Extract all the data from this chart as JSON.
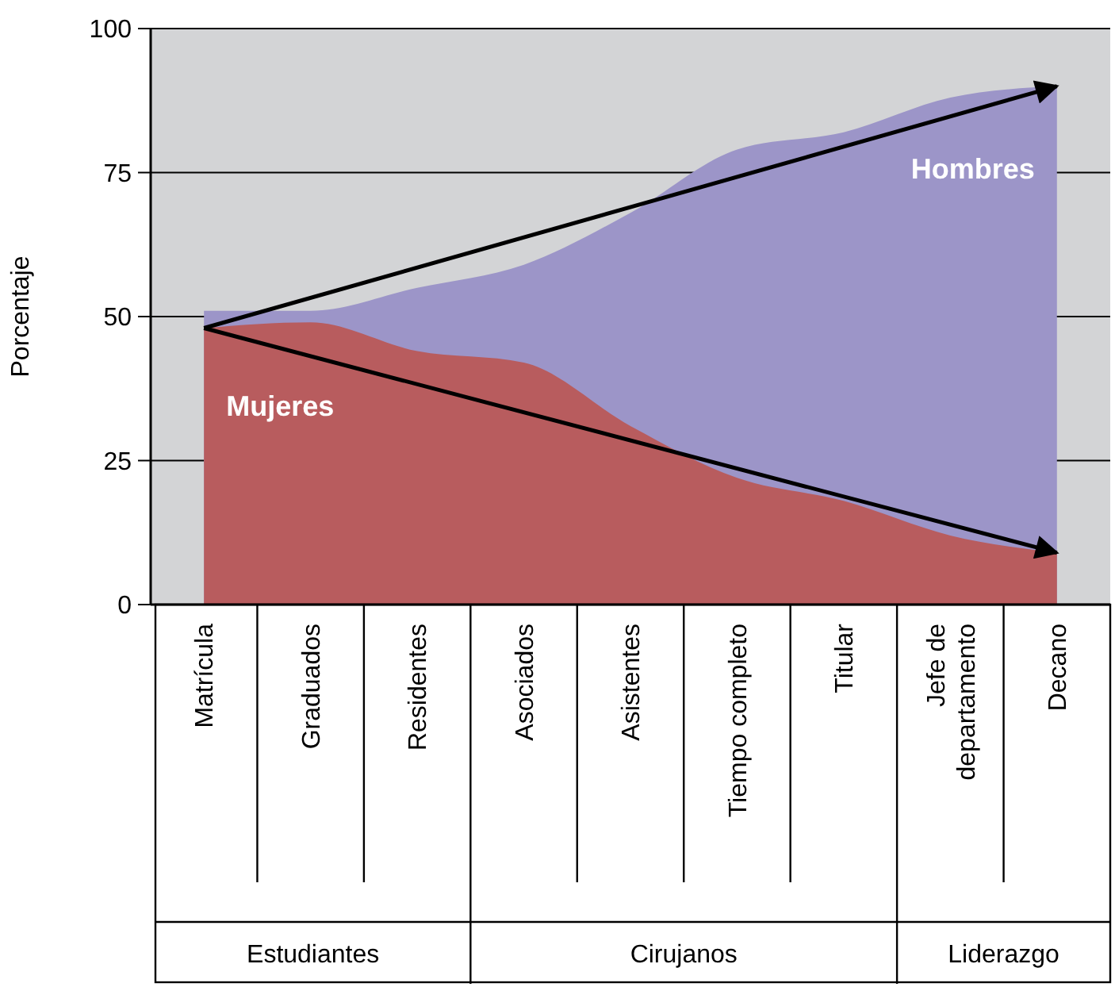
{
  "chart_data": {
    "type": "area",
    "ylabel": "Porcentaje",
    "categories": [
      "Matrícula",
      "Graduados",
      "Residentes",
      "Asociados",
      "Asistentes",
      "Tiempo completo",
      "Titular",
      "Jefe de departamento",
      "Decano"
    ],
    "series": [
      {
        "name": "Hombres",
        "color": "#9c95c8",
        "values": [
          51,
          51,
          55,
          59,
          68,
          79,
          82,
          88,
          90
        ]
      },
      {
        "name": "Mujeres",
        "color": "#b85c5e",
        "values": [
          48,
          49,
          44,
          42,
          31,
          22,
          18,
          12,
          9
        ]
      }
    ],
    "ylim": [
      0,
      100
    ],
    "yticks": [
      0,
      25,
      50,
      75,
      100
    ],
    "grid": "y",
    "annotations": [
      "Estudiantes",
      "Cirujanos",
      "Liderazgo"
    ]
  }
}
